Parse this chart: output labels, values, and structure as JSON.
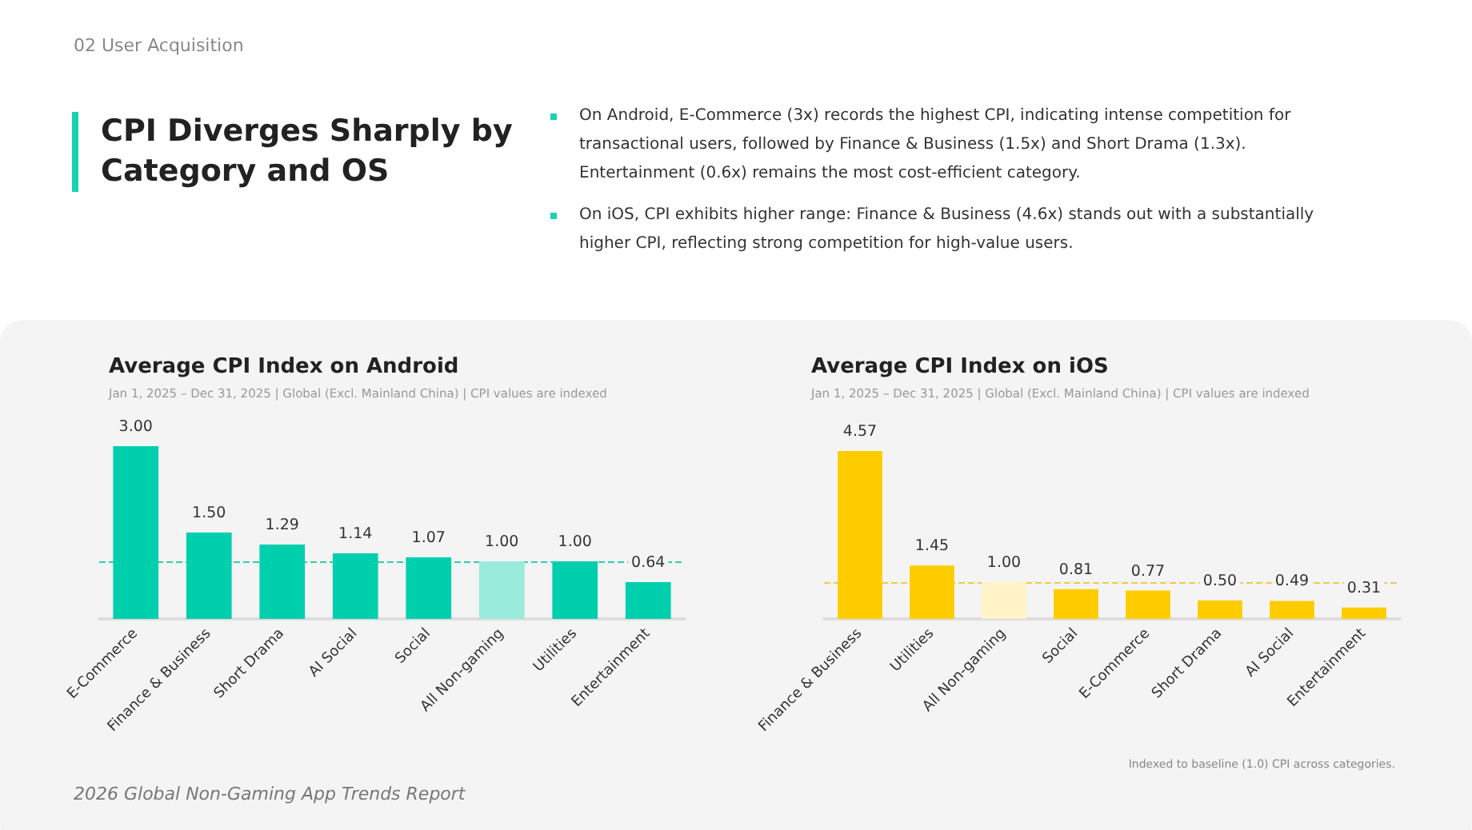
{
  "chart_data": [
    {
      "type": "other",
      "title": "CPI Diverges Sharply by Category and OS",
      "subtitle": "02  User Acquisition",
      "annotations": [
        "On Android, E-Commerce (3x) records the highest CPI, indicating intense competition for transactional users, followed by Finance & Business (1.5x) and Short Drama (1.3x). Entertainment (0.6x) remains the most cost-efficient category.",
        "On iOS, CPI exhibits higher range: Finance & Business (4.6x) stands out with a substantially higher CPI, reflecting strong competition for high-value users.",
        "Indexed to baseline (1.0) CPI across categories.",
        "2026 Global Non-Gaming App Trends Report"
      ]
    },
    {
      "type": "bar",
      "title": "Average CPI Index on Android",
      "subtitle": "Jan 1, 2025 – Dec 31, 2025 | Global (Excl. Mainland China) | CPI values are indexed",
      "categories": [
        "E-Commerce",
        "Finance & Business",
        "Short Drama",
        "AI Social",
        "Social",
        "All Non-gaming",
        "Utilities",
        "Entertainment"
      ],
      "values": [
        3.0,
        1.5,
        1.29,
        1.14,
        1.07,
        1.0,
        1.0,
        0.64
      ],
      "value_labels": [
        "3.00",
        "1.50",
        "1.29",
        "1.14",
        "1.07",
        "1.00",
        "1.00",
        "0.64"
      ],
      "colors": [
        "#00cfae",
        "#00cfae",
        "#00cfae",
        "#00cfae",
        "#00cfae",
        "#99ebdc",
        "#00cfae",
        "#00cfae"
      ],
      "ref_lines": [
        {
          "axis": "y",
          "value": 1,
          "color": "#2fcdb0",
          "line_style": "dashed"
        }
      ],
      "grid": false
    },
    {
      "type": "bar",
      "title": "Average CPI Index on iOS",
      "subtitle": "Jan 1, 2025 – Dec 31, 2025 | Global (Excl. Mainland China) | CPI values are indexed",
      "categories": [
        "Finance & Business",
        "Utilities",
        "All Non-gaming",
        "Social",
        "E-Commerce",
        "Short Drama",
        "AI Social",
        "Entertainment"
      ],
      "values": [
        4.57,
        1.45,
        1.0,
        0.81,
        0.77,
        0.5,
        0.49,
        0.31
      ],
      "value_labels": [
        "4.57",
        "1.45",
        "1.00",
        "0.81",
        "0.77",
        "0.50",
        "0.49",
        "0.31"
      ],
      "colors": [
        "#ffcc00",
        "#ffcc00",
        "#fff3c7",
        "#ffcc00",
        "#ffcc00",
        "#ffcc00",
        "#ffcc00",
        "#ffcc00"
      ],
      "ref_lines": [
        {
          "axis": "y",
          "value": 1,
          "color": "#f2c94c",
          "line_style": "dashed"
        }
      ],
      "grid": false
    }
  ]
}
